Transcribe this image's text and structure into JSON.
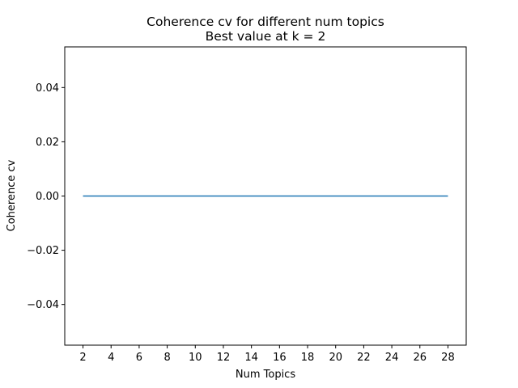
{
  "chart_data": {
    "type": "line",
    "title": "Coherence cv for different num topics",
    "subtitle": "Best value at k = 2",
    "xlabel": "Num Topics",
    "ylabel": "Coherence cv",
    "xlim": [
      0.7,
      29.3
    ],
    "ylim": [
      -0.055,
      0.055
    ],
    "x_ticks": [
      2,
      4,
      6,
      8,
      10,
      12,
      14,
      16,
      18,
      20,
      22,
      24,
      26,
      28
    ],
    "x_tick_labels": [
      "2",
      "4",
      "6",
      "8",
      "10",
      "12",
      "14",
      "16",
      "18",
      "20",
      "22",
      "24",
      "26",
      "28"
    ],
    "y_ticks": [
      -0.04,
      -0.02,
      0.0,
      0.02,
      0.04
    ],
    "y_tick_labels": [
      "−0.04",
      "−0.02",
      "0.00",
      "0.02",
      "0.04"
    ],
    "grid": false,
    "series": [
      {
        "color": "#1f77b4",
        "x": [
          2,
          3,
          4,
          5,
          6,
          7,
          8,
          9,
          10,
          11,
          12,
          13,
          14,
          15,
          16,
          17,
          18,
          19,
          20,
          21,
          22,
          23,
          24,
          25,
          26,
          27,
          28
        ],
        "y": [
          0,
          0,
          0,
          0,
          0,
          0,
          0,
          0,
          0,
          0,
          0,
          0,
          0,
          0,
          0,
          0,
          0,
          0,
          0,
          0,
          0,
          0,
          0,
          0,
          0,
          0,
          0
        ]
      }
    ]
  }
}
